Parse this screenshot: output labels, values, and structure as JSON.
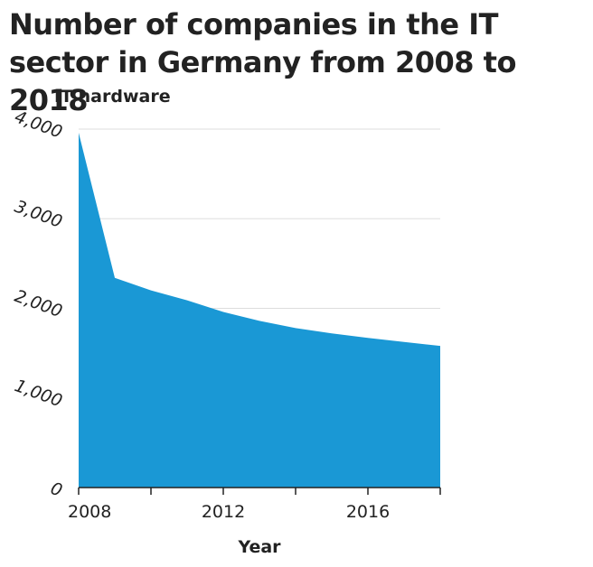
{
  "chart_data": {
    "type": "area",
    "title": "Number of companies in the IT sector in Germany from 2008 to 2018",
    "xlabel": "Year",
    "ylabel": "IT hardware",
    "x": [
      2008,
      2009,
      2010,
      2011,
      2012,
      2013,
      2014,
      2015,
      2016,
      2017,
      2018
    ],
    "series": [
      {
        "values": [
          3960,
          2340,
          2200,
          2090,
          1960,
          1860,
          1780,
          1720,
          1670,
          1625,
          1580
        ]
      }
    ],
    "xlim": [
      2008,
      2018
    ],
    "ylim": [
      0,
      4000
    ],
    "x_ticks": [
      2008,
      2010,
      2012,
      2014,
      2016,
      2018
    ],
    "x_tick_labels": [
      "2008",
      "",
      "2012",
      "",
      "2016",
      ""
    ],
    "y_ticks": [
      0,
      1000,
      2000,
      3000,
      4000
    ],
    "y_tick_labels": [
      "0",
      "1,000",
      "2,000",
      "3,000",
      "4,000"
    ],
    "grid": true,
    "fill_color": "#1a98d5",
    "grid_color": "#dddddd",
    "axis_color": "#222222"
  }
}
